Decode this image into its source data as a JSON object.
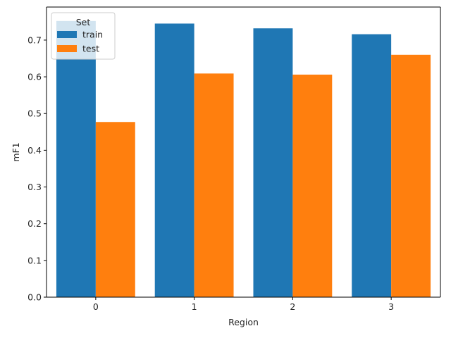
{
  "chart_data": {
    "type": "bar",
    "title": "",
    "xlabel": "Region",
    "ylabel": "mF1",
    "categories": [
      "0",
      "1",
      "2",
      "3"
    ],
    "series": [
      {
        "name": "train",
        "color": "#1f77b4",
        "values": [
          0.752,
          0.745,
          0.732,
          0.716
        ]
      },
      {
        "name": "test",
        "color": "#ff7f0e",
        "values": [
          0.477,
          0.609,
          0.606,
          0.66
        ]
      }
    ],
    "ylim": [
      0,
      0.79
    ],
    "yticks": [
      0.0,
      0.1,
      0.2,
      0.3,
      0.4,
      0.5,
      0.6,
      0.7
    ],
    "ytick_labels": [
      "0.0",
      "0.1",
      "0.2",
      "0.3",
      "0.4",
      "0.5",
      "0.6",
      "0.7"
    ],
    "grid": false,
    "legend": {
      "title": "Set",
      "placement": "top-left"
    }
  }
}
